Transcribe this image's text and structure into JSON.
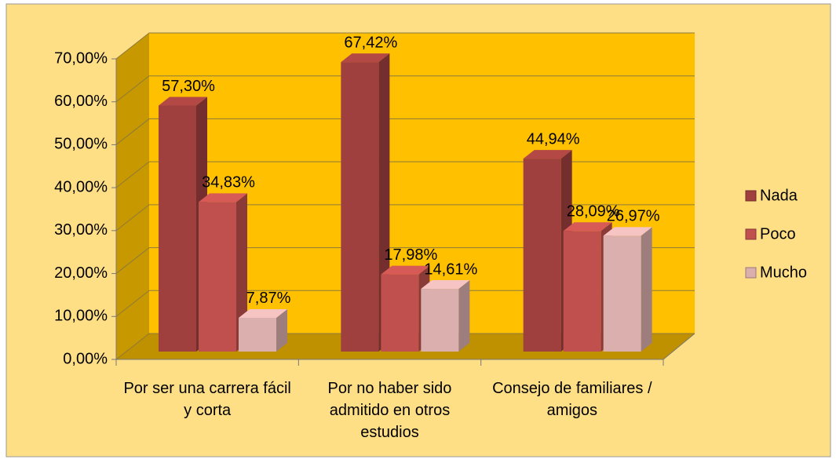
{
  "chart_data": {
    "type": "bar",
    "categories": [
      "Por ser una carrera fácil y corta",
      "Por no haber sido admitido en otros estudios",
      "Consejo de familiares / amigos"
    ],
    "series": [
      {
        "name": "Nada",
        "color": "#A0403E",
        "values": [
          57.3,
          67.42,
          44.94
        ],
        "value_labels": [
          "57,30%",
          "67,42%",
          "44,94%"
        ]
      },
      {
        "name": "Poco",
        "color": "#C0504D",
        "values": [
          34.83,
          17.98,
          28.09
        ],
        "value_labels": [
          "34,83%",
          "17,98%",
          "28,09%"
        ]
      },
      {
        "name": "Mucho",
        "color": "#DBAFAE",
        "values": [
          7.87,
          14.61,
          26.97
        ],
        "value_labels": [
          "7,87%",
          "14,61%",
          "26,97%"
        ]
      }
    ],
    "ylim": [
      0,
      70
    ],
    "yticks": [
      {
        "value": 0,
        "label": "0,00%"
      },
      {
        "value": 10,
        "label": "10,00%"
      },
      {
        "value": 20,
        "label": "20,00%"
      },
      {
        "value": 30,
        "label": "30,00%"
      },
      {
        "value": 40,
        "label": "40,00%"
      },
      {
        "value": 50,
        "label": "50,00%"
      },
      {
        "value": 60,
        "label": "60,00%"
      },
      {
        "value": 70,
        "label": "70,00%"
      }
    ],
    "grid": true,
    "legend": "right"
  }
}
